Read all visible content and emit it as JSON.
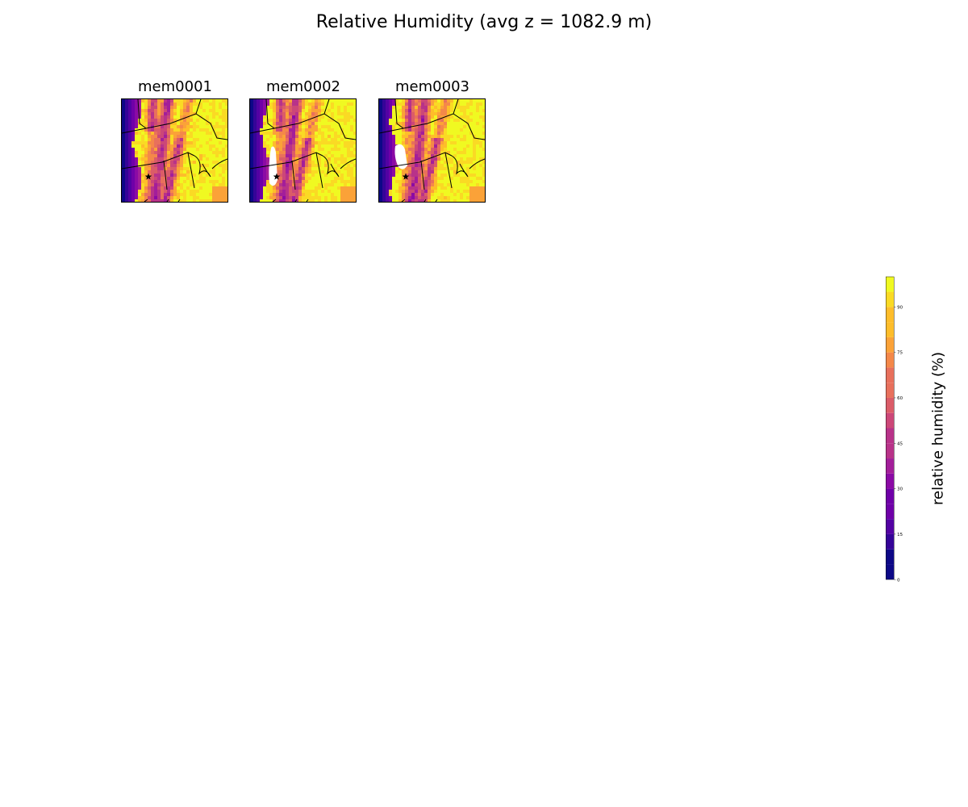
{
  "title": "Relative Humidity (avg z = 1082.9 m)",
  "chart_data": {
    "type": "heatmap",
    "title": "Relative Humidity (avg z = 1082.9 m)",
    "panels": [
      {
        "name": "mem0001",
        "marker": "star"
      },
      {
        "name": "mem0002",
        "marker": "star"
      },
      {
        "name": "mem0003",
        "marker": "star"
      }
    ],
    "colorbar": {
      "label": "relative humidity (%)",
      "vmin": 0,
      "vmax": 100,
      "levels": [
        0,
        5,
        10,
        15,
        20,
        25,
        30,
        35,
        40,
        45,
        50,
        55,
        60,
        65,
        70,
        75,
        80,
        85,
        90,
        95,
        100
      ],
      "ticks": [
        0,
        15,
        30,
        45,
        60,
        75,
        90
      ],
      "colormap": "plasma",
      "colors": [
        "#0d0887",
        "#350498",
        "#5302a3",
        "#6f00a8",
        "#8b0aa5",
        "#a31e9a",
        "#b83289",
        "#cc4778",
        "#db5c68",
        "#e8705c",
        "#f48849",
        "#fba238",
        "#febd2a",
        "#fada24",
        "#f0f921"
      ]
    },
    "grid": false
  }
}
